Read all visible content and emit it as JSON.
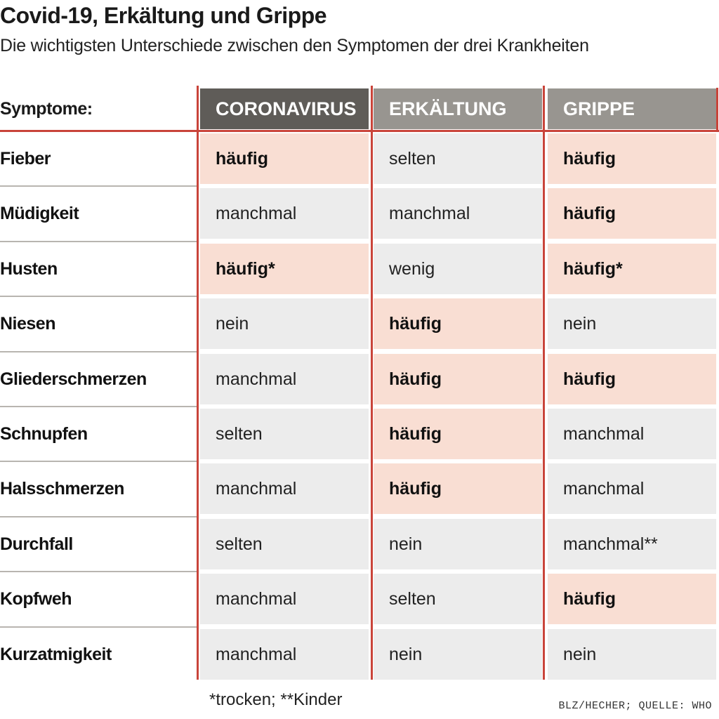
{
  "title": "Covid-19, Erkältung und Grippe",
  "subtitle": "Die wichtigsten Unterschiede zwischen den Symptomen der drei Krankheiten",
  "row_header": "Symptome:",
  "footnote": "*trocken; **Kinder",
  "source": "BLZ/HECHER; QUELLE: WHO",
  "colors": {
    "accent_red": "#c9443a",
    "header_dark": "#5f5c58",
    "header_grey": "#989590",
    "highlight": "#f9ded3",
    "cell_grey": "#ececec"
  },
  "chart_data": {
    "type": "table",
    "columns": [
      "CORONAVIRUS",
      "ERKÄLTUNG",
      "GRIPPE"
    ],
    "rows": [
      {
        "symptom": "Fieber",
        "values": [
          "häufig",
          "selten",
          "häufig"
        ],
        "highlight": [
          true,
          false,
          true
        ]
      },
      {
        "symptom": "Müdigkeit",
        "values": [
          "manchmal",
          "manchmal",
          "häufig"
        ],
        "highlight": [
          false,
          false,
          true
        ]
      },
      {
        "symptom": "Husten",
        "values": [
          "häufig*",
          "wenig",
          "häufig*"
        ],
        "highlight": [
          true,
          false,
          true
        ]
      },
      {
        "symptom": "Niesen",
        "values": [
          "nein",
          "häufig",
          "nein"
        ],
        "highlight": [
          false,
          true,
          false
        ]
      },
      {
        "symptom": "Gliederschmerzen",
        "values": [
          "manchmal",
          "häufig",
          "häufig"
        ],
        "highlight": [
          false,
          true,
          true
        ]
      },
      {
        "symptom": "Schnupfen",
        "values": [
          "selten",
          "häufig",
          "manchmal"
        ],
        "highlight": [
          false,
          true,
          false
        ]
      },
      {
        "symptom": "Halsschmerzen",
        "values": [
          "manchmal",
          "häufig",
          "manchmal"
        ],
        "highlight": [
          false,
          true,
          false
        ]
      },
      {
        "symptom": "Durchfall",
        "values": [
          "selten",
          "nein",
          "manchmal**"
        ],
        "highlight": [
          false,
          false,
          false
        ]
      },
      {
        "symptom": "Kopfweh",
        "values": [
          "manchmal",
          "selten",
          "häufig"
        ],
        "highlight": [
          false,
          false,
          true
        ]
      },
      {
        "symptom": "Kurzatmigkeit",
        "values": [
          "manchmal",
          "nein",
          "nein"
        ],
        "highlight": [
          false,
          false,
          false
        ]
      }
    ]
  }
}
